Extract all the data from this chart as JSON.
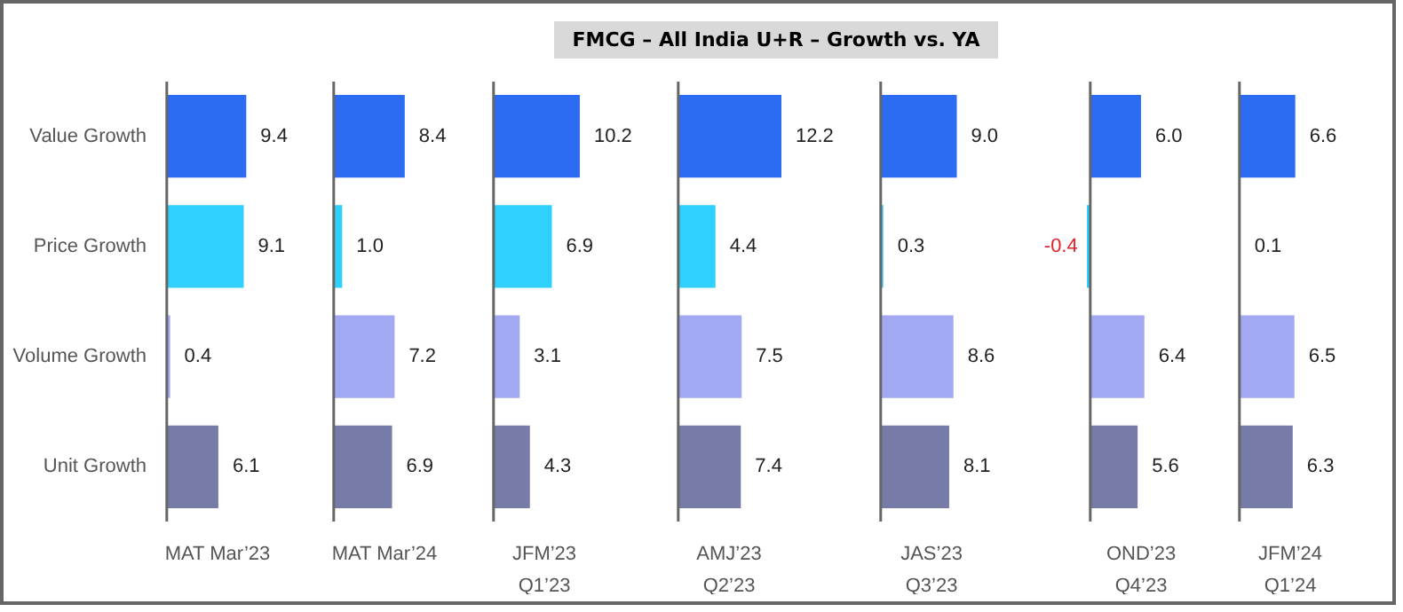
{
  "chart_data": [
    {
      "type": "bar",
      "orientation": "horizontal",
      "xlabel": "MAT Mar’23",
      "categories": [
        "Value Growth",
        "Price Growth",
        "Volume Growth",
        "Unit Growth"
      ],
      "values": [
        9.4,
        9.1,
        0.4,
        6.1
      ],
      "value_labels": [
        "9.4",
        "9.1",
        "0.4",
        "6.1"
      ],
      "colors": [
        "#2b6cf2",
        "#2fd0fc",
        "#a3a8f3",
        "#777ba8"
      ],
      "tick_labels": "y"
    },
    {
      "type": "bar",
      "orientation": "horizontal",
      "xlabel": "MAT Mar’24",
      "categories": [
        null,
        null,
        null,
        null
      ],
      "values": [
        8.4,
        1.0,
        7.2,
        6.9
      ],
      "value_labels": [
        "8.4",
        "1.0",
        "7.2",
        "6.9"
      ],
      "colors": [
        "#2b6cf2",
        "#2fd0fc",
        "#a3a8f3",
        "#777ba8"
      ],
      "tick_labels": false
    },
    {
      "type": "bar",
      "orientation": "horizontal",
      "xlabel": "JFM’23\nQ1’23",
      "categories": [
        null,
        null,
        null,
        null
      ],
      "values": [
        10.2,
        6.9,
        3.1,
        4.3
      ],
      "value_labels": [
        "10.2",
        "6.9",
        "3.1",
        "4.3"
      ],
      "colors": [
        "#2b6cf2",
        "#2fd0fc",
        "#a3a8f3",
        "#777ba8"
      ],
      "tick_labels": false
    },
    {
      "type": "bar",
      "orientation": "horizontal",
      "title": "FMCG – All India U+R – Growth vs. YA",
      "xlabel": "AMJ’23\nQ2’23",
      "categories": [
        null,
        null,
        null,
        null
      ],
      "values": [
        12.2,
        4.4,
        7.5,
        7.4
      ],
      "value_labels": [
        "12.2",
        "4.4",
        "7.5",
        "7.4"
      ],
      "colors": [
        "#2b6cf2",
        "#2fd0fc",
        "#a3a8f3",
        "#777ba8"
      ],
      "tick_labels": false
    },
    {
      "type": "bar",
      "orientation": "horizontal",
      "xlabel": "JAS’23\nQ3’23",
      "categories": [
        null,
        null,
        null,
        null
      ],
      "values": [
        9.0,
        0.3,
        8.6,
        8.1
      ],
      "value_labels": [
        "9.0",
        "0.3",
        "8.6",
        "8.1"
      ],
      "colors": [
        "#2b6cf2",
        "#2fd0fc",
        "#a3a8f3",
        "#777ba8"
      ],
      "tick_labels": false
    },
    {
      "type": "bar",
      "orientation": "horizontal",
      "xlabel": "OND’23\nQ4’23",
      "categories": [
        null,
        null,
        null,
        null
      ],
      "values": [
        6.0,
        -0.4,
        6.4,
        5.6
      ],
      "value_labels": [
        "6.0",
        "-0.4",
        "6.4",
        "5.6"
      ],
      "colors": [
        "#2b6cf2",
        "#2fd0fc",
        "#a3a8f3",
        "#777ba8"
      ],
      "tick_labels": false
    },
    {
      "type": "bar",
      "orientation": "horizontal",
      "xlabel": "JFM’24\nQ1’24",
      "categories": [
        null,
        null,
        null,
        null
      ],
      "values": [
        6.6,
        0.1,
        6.5,
        6.3
      ],
      "value_labels": [
        "6.6",
        "0.1",
        "6.5",
        "6.3"
      ],
      "colors": [
        "#2b6cf2",
        "#2fd0fc",
        "#a3a8f3",
        "#777ba8"
      ],
      "tick_labels": false
    }
  ]
}
